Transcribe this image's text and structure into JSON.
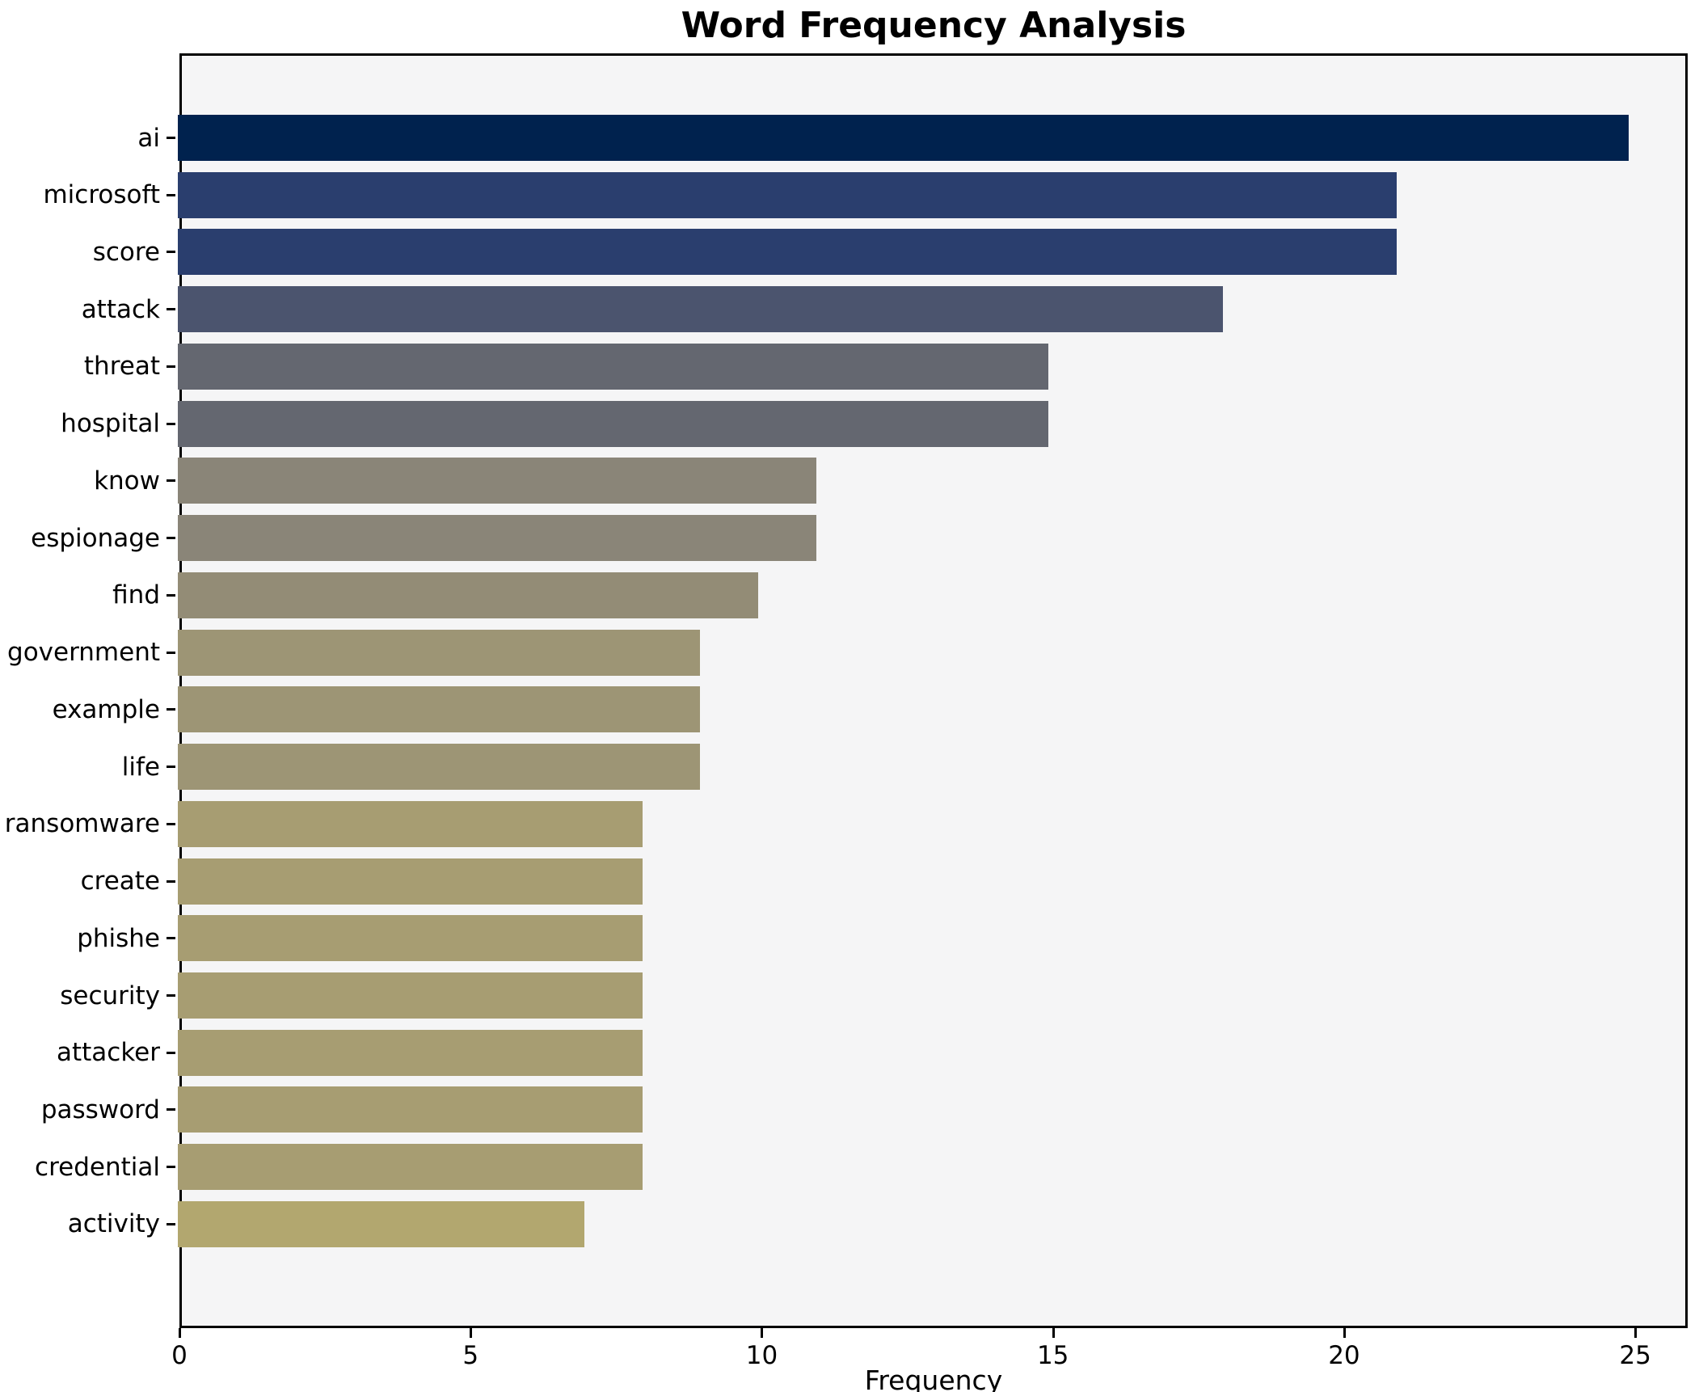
{
  "chart": {
    "title": "Word Frequency Analysis",
    "xlabel": "Frequency"
  },
  "chart_data": {
    "type": "bar",
    "orientation": "horizontal",
    "title": "Word Frequency Analysis",
    "xlabel": "Frequency",
    "ylabel": "",
    "xlim": [
      0,
      25.9
    ],
    "xticks": [
      0,
      5,
      10,
      15,
      20,
      25
    ],
    "grid": false,
    "legend": false,
    "plot_background": "#f5f5f6",
    "spine_color": "#000000",
    "categories": [
      "ai",
      "microsoft",
      "score",
      "attack",
      "threat",
      "hospital",
      "know",
      "espionage",
      "find",
      "government",
      "example",
      "life",
      "ransomware",
      "create",
      "phishe",
      "security",
      "attacker",
      "password",
      "credential",
      "activity"
    ],
    "values": [
      25,
      21,
      21,
      18,
      15,
      15,
      11,
      11,
      10,
      9,
      9,
      9,
      8,
      8,
      8,
      8,
      8,
      8,
      8,
      7
    ],
    "bar_colors": [
      "#00224e",
      "#2a3e6e",
      "#2a3e6e",
      "#4b546e",
      "#646770",
      "#646770",
      "#8a8578",
      "#8a8578",
      "#938c76",
      "#9d9575",
      "#9d9575",
      "#9d9575",
      "#a79d72",
      "#a79d72",
      "#a79d72",
      "#a79d72",
      "#a79d72",
      "#a79d72",
      "#a79d72",
      "#b2a76f"
    ]
  }
}
